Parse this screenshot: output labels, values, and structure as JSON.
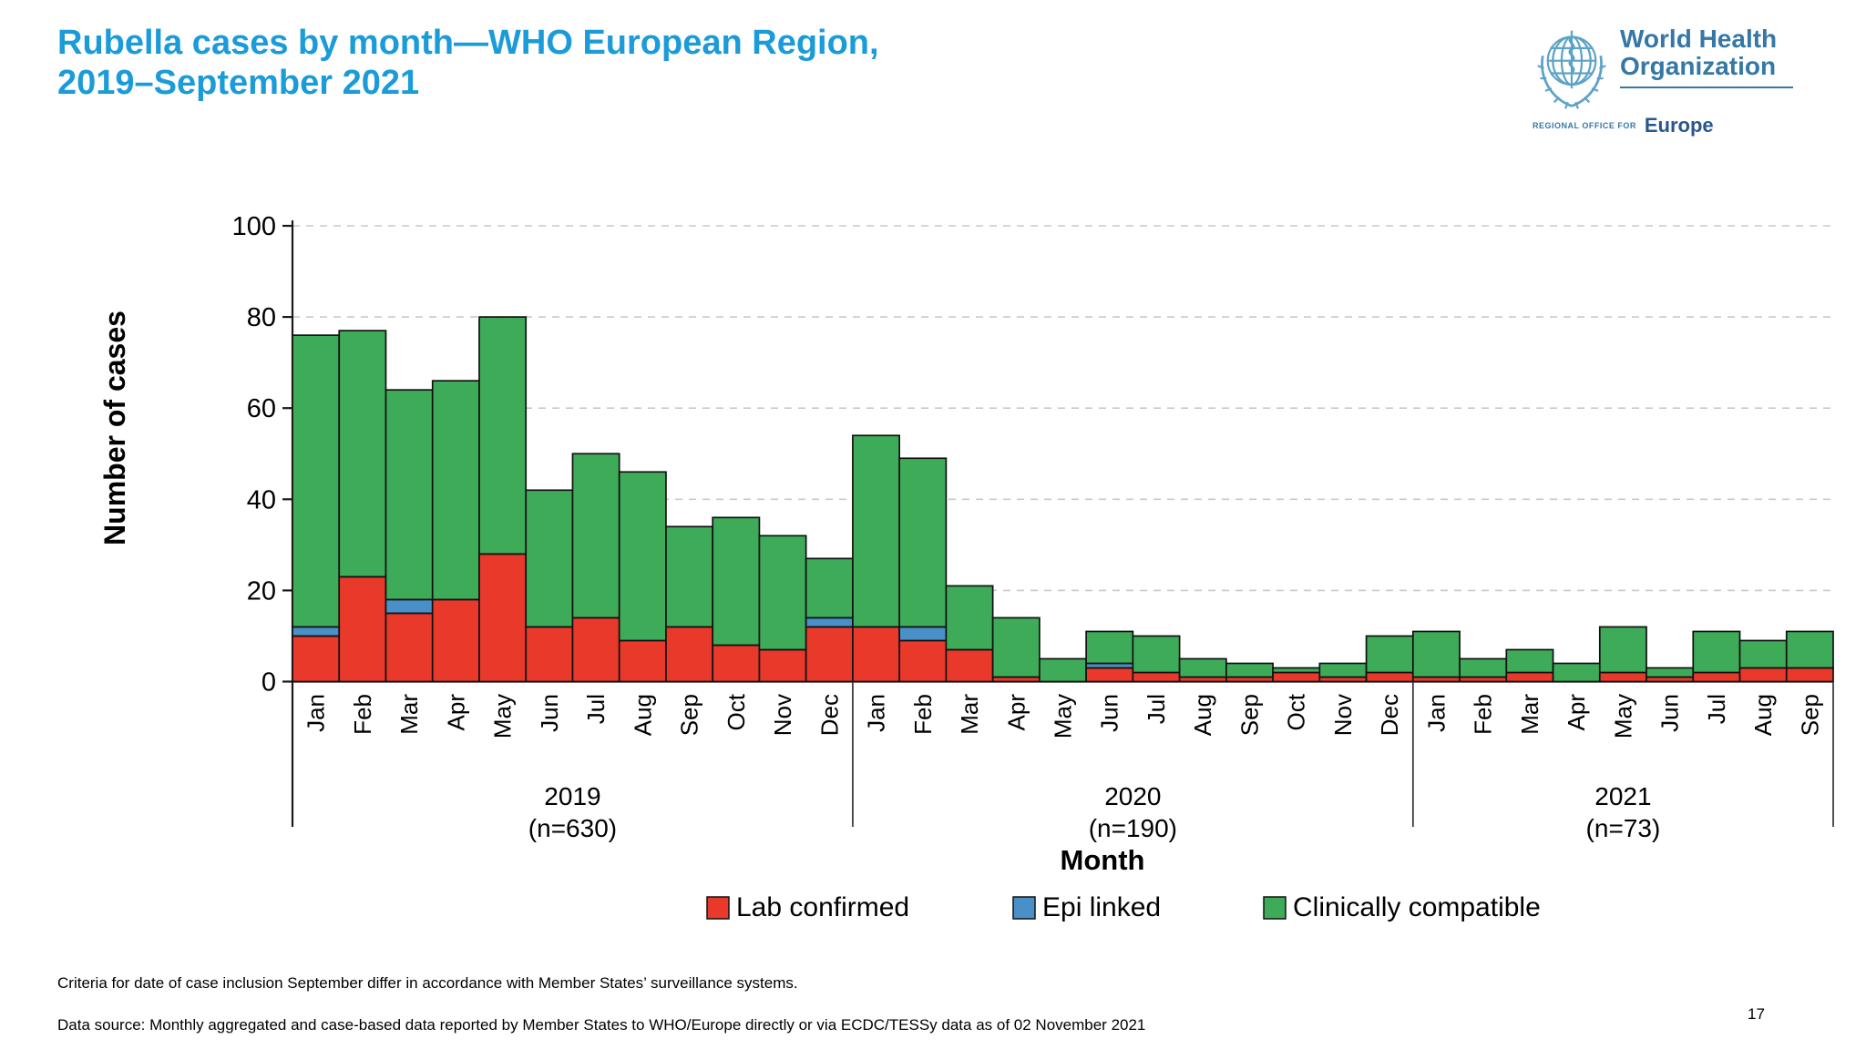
{
  "page": {
    "title_line1": "Rubella cases by month—WHO European Region,",
    "title_line2": "2019–September 2021",
    "page_number": "17",
    "footnote1": "Criteria for date of case inclusion September differ in accordance with Member States’ surveillance systems.",
    "footnote2": "Data source: Monthly aggregated and case-based data reported by Member States to WHO/Europe directly or via ECDC/TESSy data as of 02 November 2021"
  },
  "logo": {
    "name_line1": "World Health",
    "name_line2": "Organization",
    "office_prefix": "REGIONAL OFFICE FOR",
    "region": "Europe"
  },
  "colors": {
    "title_blue": "#1b9bd7",
    "lab_confirmed_red": "#e8392b",
    "epi_linked_blue": "#4a90c8",
    "clinically_compatible_green": "#3eab59",
    "gridline_gray": "#c9c9c9",
    "axis_black": "#1a1a1a"
  },
  "chart_data": {
    "type": "bar",
    "stacked": true,
    "xlabel": "Month",
    "ylabel": "Number of cases",
    "ylim": [
      0,
      100
    ],
    "yticks": [
      0,
      20,
      40,
      60,
      80,
      100
    ],
    "grid": "horizontal dashed at 20,40,60,80,100",
    "legend_position": "bottom",
    "categories": [
      "Jan",
      "Feb",
      "Mar",
      "Apr",
      "May",
      "Jun",
      "Jul",
      "Aug",
      "Sep",
      "Oct",
      "Nov",
      "Dec",
      "Jan",
      "Feb",
      "Mar",
      "Apr",
      "May",
      "Jun",
      "Jul",
      "Aug",
      "Sep",
      "Oct",
      "Nov",
      "Dec",
      "Jan",
      "Feb",
      "Mar",
      "Apr",
      "May",
      "Jun",
      "Jul",
      "Aug",
      "Sep"
    ],
    "groups": [
      {
        "label": "2019",
        "n_label": "(n=630)",
        "months": 12
      },
      {
        "label": "2020",
        "n_label": "(n=190)",
        "months": 12
      },
      {
        "label": "2021",
        "n_label": "(n=73)",
        "months": 9
      }
    ],
    "series": [
      {
        "name": "Lab confirmed",
        "color": "#e8392b",
        "values": [
          10,
          23,
          15,
          18,
          28,
          12,
          14,
          9,
          12,
          8,
          7,
          12,
          12,
          9,
          7,
          1,
          0,
          3,
          2,
          1,
          1,
          2,
          1,
          2,
          1,
          1,
          2,
          0,
          2,
          1,
          2,
          3,
          3
        ]
      },
      {
        "name": "Epi linked",
        "color": "#4a90c8",
        "values": [
          2,
          0,
          3,
          0,
          0,
          0,
          0,
          0,
          0,
          0,
          0,
          2,
          0,
          3,
          0,
          0,
          0,
          1,
          0,
          0,
          0,
          0,
          0,
          0,
          0,
          0,
          0,
          0,
          0,
          0,
          0,
          0,
          0
        ]
      },
      {
        "name": "Clinically compatible",
        "color": "#3eab59",
        "values": [
          64,
          54,
          46,
          48,
          52,
          30,
          36,
          37,
          22,
          28,
          25,
          13,
          42,
          37,
          14,
          13,
          5,
          7,
          8,
          4,
          3,
          1,
          3,
          8,
          10,
          4,
          5,
          4,
          10,
          2,
          9,
          6,
          8
        ]
      }
    ],
    "bar_totals": [
      76,
      77,
      64,
      66,
      80,
      42,
      50,
      46,
      34,
      36,
      32,
      27,
      54,
      49,
      21,
      14,
      5,
      11,
      10,
      5,
      4,
      3,
      4,
      10,
      11,
      5,
      7,
      4,
      12,
      3,
      11,
      9,
      11
    ]
  }
}
